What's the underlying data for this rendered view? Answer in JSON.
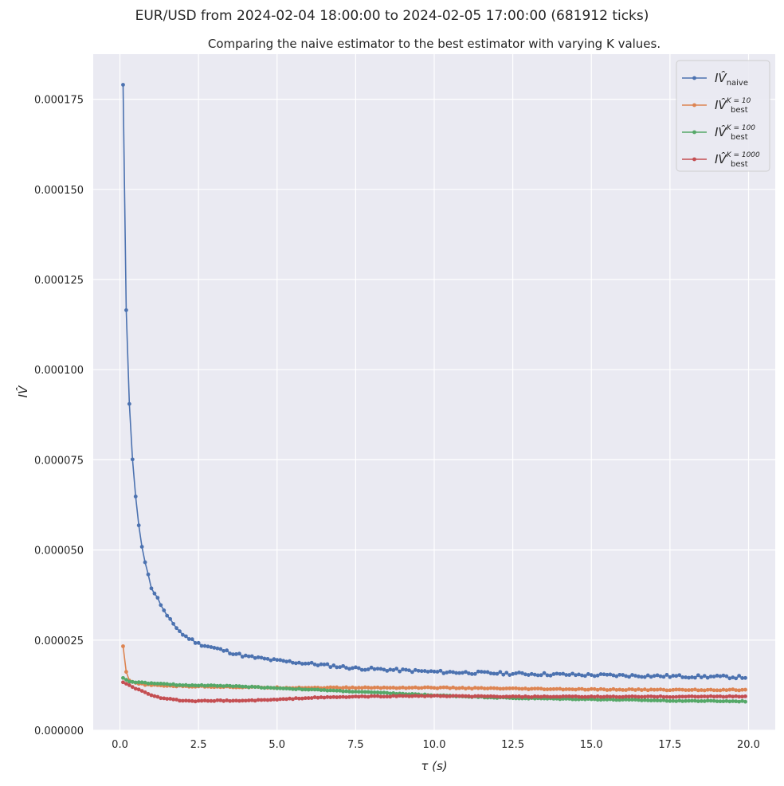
{
  "suptitle": "EUR/USD from 2024-02-04 18:00:00 to 2024-02-05 17:00:00 (681912 ticks)",
  "chart_data": {
    "type": "line",
    "title": "Comparing the naive estimator to the best estimator with varying K values.",
    "xlabel": "τ (s)",
    "ylabel": "IV̂",
    "xlim": [
      -0.85,
      20.85
    ],
    "ylim": [
      0,
      0.0001875
    ],
    "grid": true,
    "background": "#eaeaf2",
    "legend_position": "top-right",
    "xticks": [
      0.0,
      2.5,
      5.0,
      7.5,
      10.0,
      12.5,
      15.0,
      17.5,
      20.0
    ],
    "xtick_labels": [
      "0.0",
      "2.5",
      "5.0",
      "7.5",
      "10.0",
      "12.5",
      "15.0",
      "17.5",
      "20.0"
    ],
    "yticks": [
      0,
      2.5e-05,
      5e-05,
      7.5e-05,
      0.0001,
      0.000125,
      0.00015,
      0.000175
    ],
    "ytick_labels": [
      "0.000000",
      "0.000025",
      "0.000050",
      "0.000075",
      "0.000100",
      "0.000125",
      "0.000150",
      "0.000175"
    ],
    "x_start": 0.1,
    "x_step": 0.1,
    "series": [
      {
        "name": "IV̂ naive",
        "legend_base": "IV̂",
        "legend_sub": "naive",
        "legend_sup": "",
        "color": "#4c72b0",
        "anchors_x": [
          0.1,
          0.2,
          0.3,
          0.4,
          0.5,
          0.6,
          0.7,
          0.8,
          0.9,
          1.0,
          1.2,
          1.5,
          2.0,
          2.5,
          3.0,
          4.0,
          5.0,
          6.0,
          7.5,
          10.0,
          12.5,
          15.0,
          17.5,
          20.0
        ],
        "anchors_y": [
          0.000179,
          0.0001165,
          9.05e-05,
          7.5e-05,
          6.45e-05,
          5.7e-05,
          5.12e-05,
          4.68e-05,
          4.3e-05,
          3.96e-05,
          3.65e-05,
          3.15e-05,
          2.65e-05,
          2.4e-05,
          2.28e-05,
          2.05e-05,
          1.93e-05,
          1.85e-05,
          1.72e-05,
          1.62e-05,
          1.57e-05,
          1.53e-05,
          1.5e-05,
          1.47e-05
        ],
        "noise": 4e-07
      },
      {
        "name": "IV̂ best K=10",
        "legend_base": "IV̂",
        "legend_sub": "best",
        "legend_sup": "K = 10",
        "color": "#dd8452",
        "anchors_x": [
          0.1,
          0.2,
          0.3,
          0.5,
          1.0,
          2.0,
          3.0,
          5.0,
          7.5,
          10.0,
          12.5,
          15.0,
          17.5,
          20.0
        ],
        "anchors_y": [
          2.33e-05,
          1.62e-05,
          1.38e-05,
          1.3e-05,
          1.25e-05,
          1.22e-05,
          1.21e-05,
          1.18e-05,
          1.18e-05,
          1.18e-05,
          1.15e-05,
          1.13e-05,
          1.12e-05,
          1.12e-05
        ],
        "noise": 1.5e-07
      },
      {
        "name": "IV̂ best K=100",
        "legend_base": "IV̂",
        "legend_sub": "best",
        "legend_sup": "K = 100",
        "color": "#55a868",
        "anchors_x": [
          0.1,
          0.3,
          1.0,
          2.0,
          3.0,
          4.0,
          5.0,
          7.5,
          10.0,
          12.5,
          15.0,
          17.5,
          20.0
        ],
        "anchors_y": [
          1.45e-05,
          1.35e-05,
          1.3e-05,
          1.25e-05,
          1.24e-05,
          1.21e-05,
          1.17e-05,
          1.07e-05,
          9.7e-06,
          8.9e-06,
          8.6e-06,
          8.2e-06,
          8e-06
        ],
        "noise": 1.2e-07
      },
      {
        "name": "IV̂ best K=1000",
        "legend_base": "IV̂",
        "legend_sub": "best",
        "legend_sup": "K = 1000",
        "color": "#c44e52",
        "anchors_x": [
          0.1,
          0.3,
          0.5,
          0.8,
          1.0,
          1.3,
          1.7,
          2.0,
          2.3,
          2.6,
          3.0,
          4.0,
          5.0,
          6.0,
          7.5,
          9.0,
          10.0,
          12.5,
          15.0,
          17.5,
          20.0
        ],
        "anchors_y": [
          1.33e-05,
          1.25e-05,
          1.16e-05,
          1.05e-05,
          9.8e-06,
          9e-06,
          8.5e-06,
          8.2e-06,
          8e-06,
          8.1e-06,
          8.2e-06,
          8.2e-06,
          8.5e-06,
          9e-06,
          9.3e-06,
          9.5e-06,
          9.5e-06,
          9.3e-06,
          9.3e-06,
          9.3e-06,
          9.4e-06
        ],
        "noise": 1.2e-07
      }
    ]
  }
}
